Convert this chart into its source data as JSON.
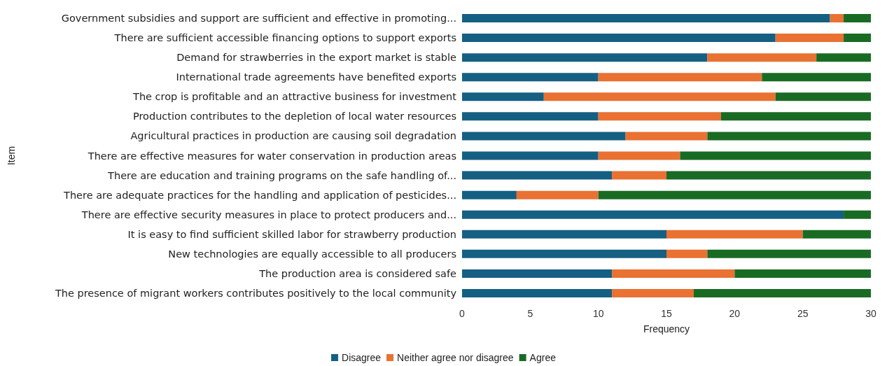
{
  "chart_data": {
    "type": "bar",
    "orientation": "horizontal",
    "stacked": true,
    "xlabel": "Frequency",
    "ylabel": "Item",
    "categories": [
      "Government subsidies and support are sufficient and effective in promoting...",
      "There are sufficient accessible financing options to support exports",
      "Demand for strawberries in the export market is stable",
      "International trade agreements have benefited exports",
      "The crop is profitable and an attractive business for investment",
      "Production contributes to the depletion of local water resources",
      "Agricultural practices in production are causing soil degradation",
      "There are effective measures for water conservation in production areas",
      "There are education and training programs on the safe handling of...",
      "There are adequate practices for the handling and application of pesticides...",
      "There are effective security measures in place to protect producers and...",
      "It is easy to find sufficient skilled labor for strawberry production",
      "New technologies are equally accessible to all producers",
      "The production area is considered safe",
      "The presence of migrant workers contributes positively to the local community"
    ],
    "series": [
      {
        "name": "Disagree",
        "color": "#156082",
        "values": [
          27,
          23,
          18,
          10,
          6,
          10,
          12,
          10,
          11,
          4,
          28,
          15,
          15,
          11,
          11
        ]
      },
      {
        "name": "Neither agree nor disagree",
        "color": "#e97132",
        "values": [
          1,
          5,
          8,
          12,
          17,
          9,
          6,
          6,
          4,
          6,
          0,
          10,
          3,
          9,
          6
        ]
      },
      {
        "name": "Agree",
        "color": "#196b24",
        "values": [
          2,
          2,
          4,
          8,
          7,
          11,
          12,
          14,
          15,
          20,
          2,
          5,
          12,
          10,
          13
        ]
      }
    ],
    "xlim": [
      0,
      30
    ],
    "xticks": [
      0,
      5,
      10,
      15,
      20,
      25,
      30
    ],
    "legend": "bottom"
  }
}
